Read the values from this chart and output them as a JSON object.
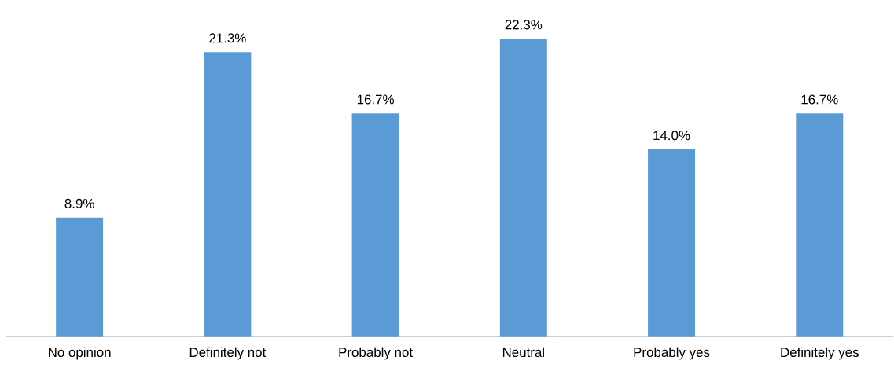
{
  "chart_data": {
    "type": "bar",
    "categories": [
      "No opinion",
      "Definitely not",
      "Probably not",
      "Neutral",
      "Probably yes",
      "Definitely yes"
    ],
    "values": [
      8.9,
      21.3,
      16.7,
      22.3,
      14.0,
      16.7
    ],
    "value_labels": [
      "8.9%",
      "21.3%",
      "16.7%",
      "22.3%",
      "14.0%",
      "16.7%"
    ],
    "color": "#5b9bd5",
    "tick_labels": "x"
  }
}
